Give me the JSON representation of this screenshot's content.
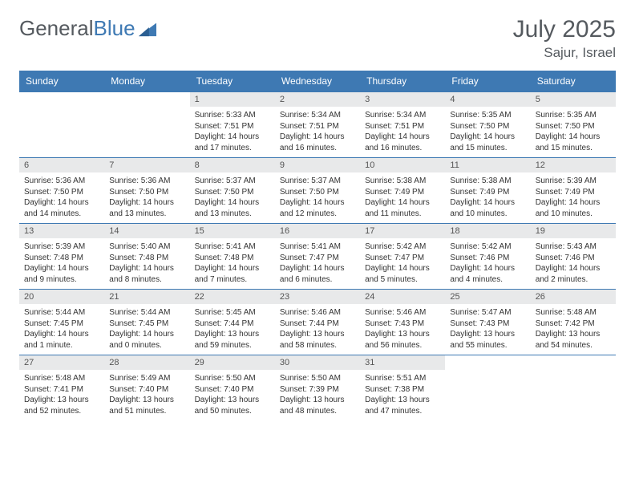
{
  "logo": {
    "general": "General",
    "blue": "Blue"
  },
  "header": {
    "month": "July 2025",
    "location": "Sajur, Israel"
  },
  "colors": {
    "brand": "#3e79b3",
    "text_muted": "#555a5f",
    "daybar": "#e8e9ea",
    "body_text": "#333333",
    "bg": "#ffffff"
  },
  "dayNames": [
    "Sunday",
    "Monday",
    "Tuesday",
    "Wednesday",
    "Thursday",
    "Friday",
    "Saturday"
  ],
  "weeks": [
    [
      null,
      null,
      {
        "n": "1",
        "sr": "5:33 AM",
        "ss": "7:51 PM",
        "dl": "14 hours and 17 minutes."
      },
      {
        "n": "2",
        "sr": "5:34 AM",
        "ss": "7:51 PM",
        "dl": "14 hours and 16 minutes."
      },
      {
        "n": "3",
        "sr": "5:34 AM",
        "ss": "7:51 PM",
        "dl": "14 hours and 16 minutes."
      },
      {
        "n": "4",
        "sr": "5:35 AM",
        "ss": "7:50 PM",
        "dl": "14 hours and 15 minutes."
      },
      {
        "n": "5",
        "sr": "5:35 AM",
        "ss": "7:50 PM",
        "dl": "14 hours and 15 minutes."
      }
    ],
    [
      {
        "n": "6",
        "sr": "5:36 AM",
        "ss": "7:50 PM",
        "dl": "14 hours and 14 minutes."
      },
      {
        "n": "7",
        "sr": "5:36 AM",
        "ss": "7:50 PM",
        "dl": "14 hours and 13 minutes."
      },
      {
        "n": "8",
        "sr": "5:37 AM",
        "ss": "7:50 PM",
        "dl": "14 hours and 13 minutes."
      },
      {
        "n": "9",
        "sr": "5:37 AM",
        "ss": "7:50 PM",
        "dl": "14 hours and 12 minutes."
      },
      {
        "n": "10",
        "sr": "5:38 AM",
        "ss": "7:49 PM",
        "dl": "14 hours and 11 minutes."
      },
      {
        "n": "11",
        "sr": "5:38 AM",
        "ss": "7:49 PM",
        "dl": "14 hours and 10 minutes."
      },
      {
        "n": "12",
        "sr": "5:39 AM",
        "ss": "7:49 PM",
        "dl": "14 hours and 10 minutes."
      }
    ],
    [
      {
        "n": "13",
        "sr": "5:39 AM",
        "ss": "7:48 PM",
        "dl": "14 hours and 9 minutes."
      },
      {
        "n": "14",
        "sr": "5:40 AM",
        "ss": "7:48 PM",
        "dl": "14 hours and 8 minutes."
      },
      {
        "n": "15",
        "sr": "5:41 AM",
        "ss": "7:48 PM",
        "dl": "14 hours and 7 minutes."
      },
      {
        "n": "16",
        "sr": "5:41 AM",
        "ss": "7:47 PM",
        "dl": "14 hours and 6 minutes."
      },
      {
        "n": "17",
        "sr": "5:42 AM",
        "ss": "7:47 PM",
        "dl": "14 hours and 5 minutes."
      },
      {
        "n": "18",
        "sr": "5:42 AM",
        "ss": "7:46 PM",
        "dl": "14 hours and 4 minutes."
      },
      {
        "n": "19",
        "sr": "5:43 AM",
        "ss": "7:46 PM",
        "dl": "14 hours and 2 minutes."
      }
    ],
    [
      {
        "n": "20",
        "sr": "5:44 AM",
        "ss": "7:45 PM",
        "dl": "14 hours and 1 minute."
      },
      {
        "n": "21",
        "sr": "5:44 AM",
        "ss": "7:45 PM",
        "dl": "14 hours and 0 minutes."
      },
      {
        "n": "22",
        "sr": "5:45 AM",
        "ss": "7:44 PM",
        "dl": "13 hours and 59 minutes."
      },
      {
        "n": "23",
        "sr": "5:46 AM",
        "ss": "7:44 PM",
        "dl": "13 hours and 58 minutes."
      },
      {
        "n": "24",
        "sr": "5:46 AM",
        "ss": "7:43 PM",
        "dl": "13 hours and 56 minutes."
      },
      {
        "n": "25",
        "sr": "5:47 AM",
        "ss": "7:43 PM",
        "dl": "13 hours and 55 minutes."
      },
      {
        "n": "26",
        "sr": "5:48 AM",
        "ss": "7:42 PM",
        "dl": "13 hours and 54 minutes."
      }
    ],
    [
      {
        "n": "27",
        "sr": "5:48 AM",
        "ss": "7:41 PM",
        "dl": "13 hours and 52 minutes."
      },
      {
        "n": "28",
        "sr": "5:49 AM",
        "ss": "7:40 PM",
        "dl": "13 hours and 51 minutes."
      },
      {
        "n": "29",
        "sr": "5:50 AM",
        "ss": "7:40 PM",
        "dl": "13 hours and 50 minutes."
      },
      {
        "n": "30",
        "sr": "5:50 AM",
        "ss": "7:39 PM",
        "dl": "13 hours and 48 minutes."
      },
      {
        "n": "31",
        "sr": "5:51 AM",
        "ss": "7:38 PM",
        "dl": "13 hours and 47 minutes."
      },
      null,
      null
    ]
  ],
  "labels": {
    "sunrise": "Sunrise: ",
    "sunset": "Sunset: ",
    "daylight": "Daylight: "
  }
}
